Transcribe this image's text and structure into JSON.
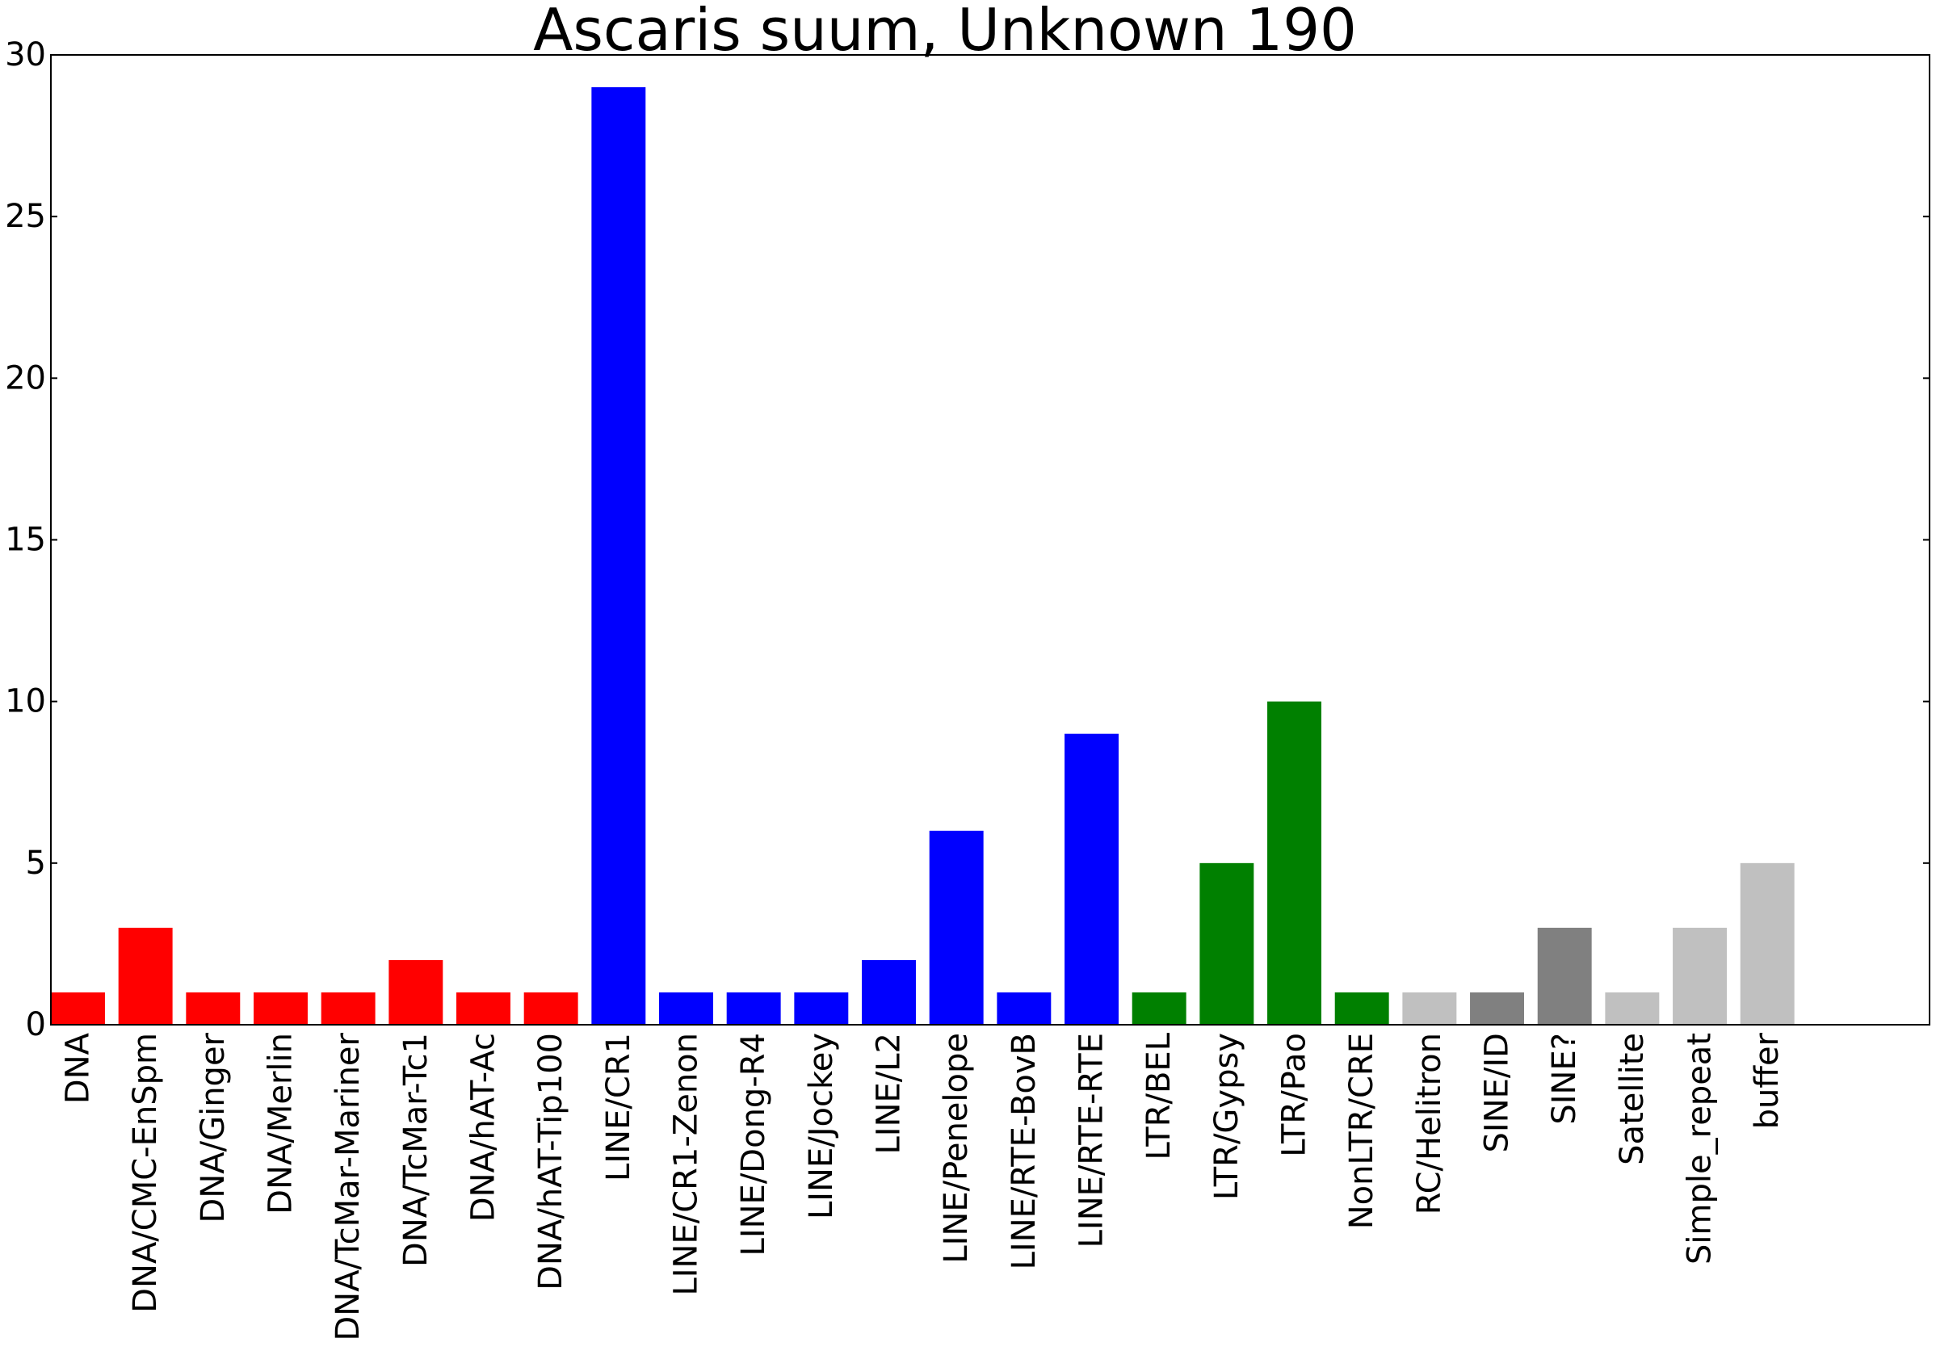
{
  "chart_data": {
    "type": "bar",
    "title": "Ascaris suum, Unknown 190",
    "xlabel": "",
    "ylabel": "",
    "ylim": [
      0,
      30
    ],
    "yticks": [
      0,
      5,
      10,
      15,
      20,
      25,
      30
    ],
    "grid": false,
    "legend": "none",
    "categories": [
      "DNA",
      "DNA/CMC-EnSpm",
      "DNA/Ginger",
      "DNA/Merlin",
      "DNA/TcMar-Mariner",
      "DNA/TcMar-Tc1",
      "DNA/hAT-Ac",
      "DNA/hAT-Tip100",
      "LINE/CR1",
      "LINE/CR1-Zenon",
      "LINE/Dong-R4",
      "LINE/Jockey",
      "LINE/L2",
      "LINE/Penelope",
      "LINE/RTE-BovB",
      "LINE/RTE-RTE",
      "LTR/BEL",
      "LTR/Gypsy",
      "LTR/Pao",
      "NonLTR/CRE",
      "RC/Helitron",
      "SINE/ID",
      "SINE?",
      "Satellite",
      "Simple_repeat",
      "buffer"
    ],
    "values": [
      1,
      3,
      1,
      1,
      1,
      2,
      1,
      1,
      29,
      1,
      1,
      1,
      2,
      6,
      1,
      9,
      1,
      5,
      10,
      1,
      1,
      1,
      3,
      1,
      3,
      5
    ],
    "colors": [
      "#ff0000",
      "#ff0000",
      "#ff0000",
      "#ff0000",
      "#ff0000",
      "#ff0000",
      "#ff0000",
      "#ff0000",
      "#0000ff",
      "#0000ff",
      "#0000ff",
      "#0000ff",
      "#0000ff",
      "#0000ff",
      "#0000ff",
      "#0000ff",
      "#008000",
      "#008000",
      "#008000",
      "#008000",
      "#c0c0c0",
      "#808080",
      "#808080",
      "#c0c0c0",
      "#c0c0c0",
      "#c0c0c0"
    ]
  }
}
